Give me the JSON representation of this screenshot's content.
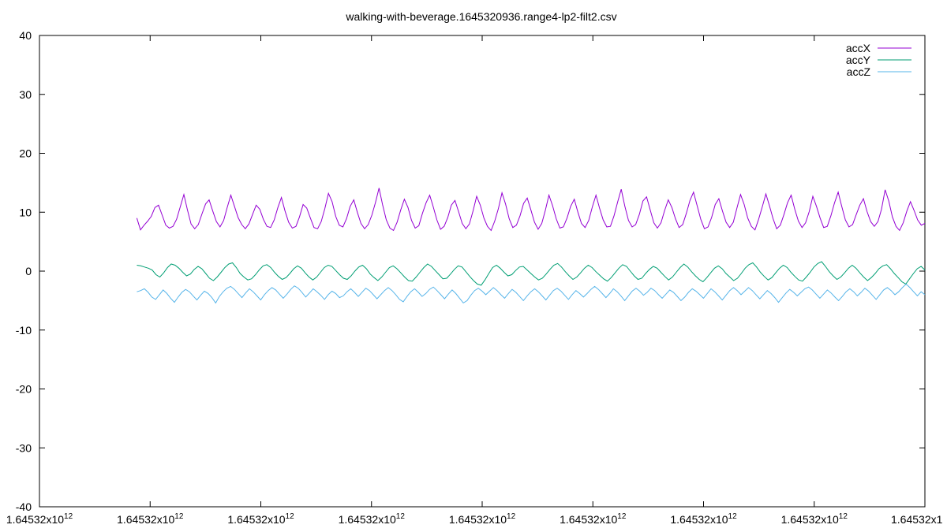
{
  "chart_data": {
    "type": "line",
    "title": "walking-with-beverage.1645320936.range4-lp2-filt2.csv",
    "xlabel": "",
    "ylabel": "",
    "ylim": [
      -40,
      40
    ],
    "yticks": [
      -40,
      -30,
      -20,
      -10,
      0,
      10,
      20,
      30,
      40
    ],
    "xtick_labels": [
      {
        "base": "1.64532x10",
        "exp": "12"
      },
      {
        "base": "1.64532x10",
        "exp": "12"
      },
      {
        "base": "1.64532x10",
        "exp": "12"
      },
      {
        "base": "1.64532x10",
        "exp": "12"
      },
      {
        "base": "1.64532x10",
        "exp": "12"
      },
      {
        "base": "1.64532x10",
        "exp": "12"
      },
      {
        "base": "1.64532x10",
        "exp": "12"
      },
      {
        "base": "1.64532x10",
        "exp": "12"
      },
      {
        "base": "1.64532x1",
        "exp": ""
      }
    ],
    "grid": false,
    "legend_position": "top-right",
    "x_range_fraction": [
      0.11,
      1.0
    ],
    "series": [
      {
        "name": "accX",
        "color": "#9400d3",
        "values": [
          9.0,
          7.0,
          7.8,
          8.5,
          9.3,
          10.8,
          11.2,
          9.5,
          7.8,
          7.3,
          7.6,
          8.8,
          10.9,
          13.0,
          10.4,
          8.0,
          7.2,
          7.9,
          9.7,
          11.4,
          12.1,
          10.2,
          8.4,
          7.5,
          8.6,
          10.8,
          12.9,
          11.0,
          9.1,
          7.9,
          7.2,
          8.0,
          9.6,
          11.2,
          10.5,
          8.8,
          7.6,
          7.4,
          8.7,
          10.8,
          12.5,
          10.2,
          8.3,
          7.3,
          7.6,
          9.2,
          11.3,
          10.7,
          9.0,
          7.4,
          7.2,
          8.4,
          10.6,
          13.2,
          11.8,
          9.3,
          7.8,
          7.5,
          8.9,
          11.0,
          12.1,
          10.0,
          8.1,
          7.2,
          7.9,
          9.5,
          11.6,
          14.1,
          11.2,
          8.7,
          7.3,
          6.9,
          8.3,
          10.4,
          12.2,
          10.8,
          8.6,
          7.3,
          7.7,
          9.8,
          11.6,
          12.9,
          10.9,
          8.7,
          7.1,
          7.6,
          9.1,
          11.2,
          12.0,
          10.1,
          8.1,
          7.2,
          8.0,
          10.2,
          12.7,
          11.2,
          9.0,
          7.6,
          6.9,
          8.5,
          10.6,
          13.3,
          11.4,
          8.9,
          7.4,
          7.8,
          9.4,
          11.5,
          12.4,
          10.4,
          8.3,
          7.1,
          8.1,
          10.3,
          12.9,
          11.1,
          8.9,
          7.3,
          7.5,
          9.0,
          11.0,
          12.2,
          10.0,
          8.1,
          7.4,
          8.6,
          10.9,
          12.9,
          10.7,
          8.7,
          7.5,
          7.6,
          9.4,
          11.7,
          13.9,
          11.0,
          8.6,
          7.5,
          7.9,
          9.6,
          11.9,
          12.6,
          10.4,
          8.2,
          7.3,
          8.2,
          10.3,
          12.1,
          10.8,
          8.9,
          7.4,
          7.9,
          9.8,
          12.0,
          13.4,
          11.1,
          8.8,
          7.2,
          7.5,
          9.1,
          11.3,
          12.3,
          10.2,
          8.3,
          7.4,
          8.3,
          10.7,
          13.0,
          11.3,
          9.0,
          7.6,
          7.0,
          8.8,
          10.9,
          13.1,
          11.1,
          8.9,
          7.2,
          7.8,
          9.6,
          11.6,
          12.9,
          10.5,
          8.5,
          7.4,
          8.2,
          10.1,
          12.7,
          11.0,
          9.0,
          7.4,
          7.6,
          9.4,
          11.6,
          13.4,
          11.0,
          8.7,
          7.5,
          7.9,
          9.6,
          11.2,
          12.3,
          10.1,
          8.4,
          7.6,
          8.4,
          10.5,
          13.8,
          11.9,
          9.2,
          7.6,
          6.9,
          8.2,
          10.2,
          11.8,
          10.3,
          8.7,
          7.8,
          8.1
        ]
      },
      {
        "name": "accY",
        "color": "#009e73",
        "values": [
          1.0,
          0.9,
          0.7,
          0.5,
          0.2,
          -0.6,
          -1.0,
          -0.3,
          0.6,
          1.2,
          1.0,
          0.5,
          -0.2,
          -0.8,
          -0.5,
          0.3,
          0.8,
          0.4,
          -0.4,
          -1.2,
          -1.6,
          -1.0,
          -0.2,
          0.6,
          1.2,
          1.4,
          0.6,
          -0.4,
          -1.0,
          -1.5,
          -1.3,
          -0.6,
          0.2,
          0.9,
          1.1,
          0.6,
          -0.2,
          -0.9,
          -1.4,
          -1.1,
          -0.4,
          0.4,
          0.9,
          0.5,
          -0.3,
          -1.0,
          -1.5,
          -1.0,
          -0.2,
          0.6,
          1.0,
          0.8,
          0.1,
          -0.6,
          -1.2,
          -1.4,
          -0.8,
          0.0,
          0.7,
          1.0,
          0.4,
          -0.5,
          -1.1,
          -1.6,
          -1.0,
          -0.2,
          0.6,
          0.9,
          0.4,
          -0.3,
          -1.0,
          -1.6,
          -1.7,
          -1.0,
          -0.2,
          0.6,
          1.2,
          0.8,
          0.1,
          -0.6,
          -1.3,
          -1.2,
          -0.5,
          0.3,
          0.9,
          0.7,
          -0.1,
          -0.9,
          -1.6,
          -2.2,
          -2.4,
          -1.5,
          -0.4,
          0.6,
          1.0,
          0.5,
          -0.2,
          -0.8,
          -0.6,
          0.1,
          0.7,
          0.8,
          0.2,
          -0.4,
          -1.0,
          -1.5,
          -1.2,
          -0.5,
          0.3,
          1.0,
          1.3,
          0.7,
          -0.1,
          -0.8,
          -1.4,
          -1.0,
          -0.3,
          0.5,
          1.0,
          0.6,
          -0.1,
          -0.7,
          -1.3,
          -1.7,
          -1.1,
          -0.3,
          0.5,
          1.1,
          0.8,
          0.0,
          -0.8,
          -1.4,
          -1.2,
          -0.4,
          0.3,
          0.8,
          0.5,
          -0.2,
          -0.9,
          -1.5,
          -1.0,
          -0.2,
          0.6,
          1.2,
          0.7,
          -0.1,
          -0.8,
          -1.4,
          -1.8,
          -1.1,
          -0.3,
          0.5,
          0.9,
          0.4,
          -0.4,
          -1.0,
          -1.6,
          -1.2,
          -0.4,
          0.5,
          1.1,
          1.4,
          0.7,
          -0.2,
          -0.9,
          -1.5,
          -1.1,
          -0.3,
          0.5,
          1.0,
          0.6,
          -0.2,
          -0.9,
          -1.5,
          -1.7,
          -1.0,
          -0.2,
          0.7,
          1.3,
          1.6,
          0.8,
          -0.1,
          -0.8,
          -1.4,
          -1.0,
          -0.3,
          0.5,
          1.0,
          0.5,
          -0.3,
          -1.0,
          -1.6,
          -1.1,
          -0.4,
          0.4,
          0.9,
          1.1,
          0.4,
          -0.4,
          -1.1,
          -1.8,
          -2.2,
          -1.3,
          -0.4,
          0.4,
          0.8,
          0.2
        ]
      },
      {
        "name": "accZ",
        "color": "#56b4e9",
        "values": [
          -3.5,
          -3.3,
          -3.0,
          -3.6,
          -4.4,
          -4.8,
          -4.0,
          -3.2,
          -3.8,
          -4.6,
          -5.3,
          -4.4,
          -3.6,
          -3.1,
          -3.5,
          -4.2,
          -4.9,
          -4.1,
          -3.4,
          -3.8,
          -4.5,
          -5.4,
          -4.3,
          -3.5,
          -2.9,
          -2.6,
          -3.1,
          -3.8,
          -4.5,
          -3.7,
          -3.0,
          -3.5,
          -4.2,
          -4.9,
          -4.0,
          -3.3,
          -2.8,
          -3.2,
          -3.9,
          -4.6,
          -3.9,
          -3.1,
          -2.5,
          -2.9,
          -3.6,
          -4.4,
          -3.7,
          -3.0,
          -3.5,
          -4.1,
          -4.8,
          -4.0,
          -3.4,
          -3.8,
          -4.5,
          -4.2,
          -3.5,
          -3.0,
          -3.6,
          -4.3,
          -3.6,
          -2.9,
          -3.3,
          -4.0,
          -4.7,
          -4.0,
          -3.3,
          -2.8,
          -3.3,
          -4.0,
          -4.8,
          -5.2,
          -4.3,
          -3.5,
          -3.0,
          -3.6,
          -4.3,
          -3.8,
          -3.1,
          -2.7,
          -3.3,
          -4.0,
          -4.7,
          -3.9,
          -3.2,
          -3.8,
          -4.6,
          -5.4,
          -5.0,
          -4.1,
          -3.3,
          -2.9,
          -3.4,
          -4.0,
          -3.4,
          -2.8,
          -3.3,
          -4.0,
          -4.6,
          -3.8,
          -3.1,
          -3.6,
          -4.3,
          -5.0,
          -4.2,
          -3.5,
          -3.0,
          -3.5,
          -4.2,
          -4.9,
          -4.1,
          -3.3,
          -2.9,
          -3.4,
          -4.1,
          -4.8,
          -4.0,
          -3.3,
          -3.8,
          -4.4,
          -3.8,
          -3.1,
          -2.6,
          -3.1,
          -3.8,
          -4.5,
          -3.8,
          -3.0,
          -3.5,
          -4.2,
          -5.0,
          -4.2,
          -3.4,
          -2.9,
          -3.4,
          -4.1,
          -3.6,
          -2.9,
          -3.3,
          -4.0,
          -4.6,
          -3.9,
          -3.2,
          -3.6,
          -4.3,
          -5.0,
          -4.4,
          -3.6,
          -3.0,
          -3.4,
          -4.0,
          -4.6,
          -3.8,
          -3.0,
          -3.5,
          -4.2,
          -4.9,
          -4.1,
          -3.3,
          -2.8,
          -3.3,
          -4.0,
          -3.4,
          -2.8,
          -3.3,
          -4.0,
          -4.7,
          -4.0,
          -3.3,
          -3.8,
          -4.5,
          -5.3,
          -4.5,
          -3.7,
          -3.1,
          -3.6,
          -4.2,
          -3.6,
          -3.0,
          -2.7,
          -3.2,
          -3.9,
          -4.6,
          -3.9,
          -3.2,
          -3.7,
          -4.4,
          -5.0,
          -4.3,
          -3.5,
          -3.0,
          -3.5,
          -4.2,
          -3.6,
          -2.9,
          -3.4,
          -4.1,
          -4.8,
          -4.0,
          -3.2,
          -2.8,
          -3.3,
          -4.0,
          -3.5,
          -2.8,
          -2.2,
          -2.8,
          -3.5,
          -4.2,
          -3.5,
          -4.0
        ]
      }
    ]
  }
}
